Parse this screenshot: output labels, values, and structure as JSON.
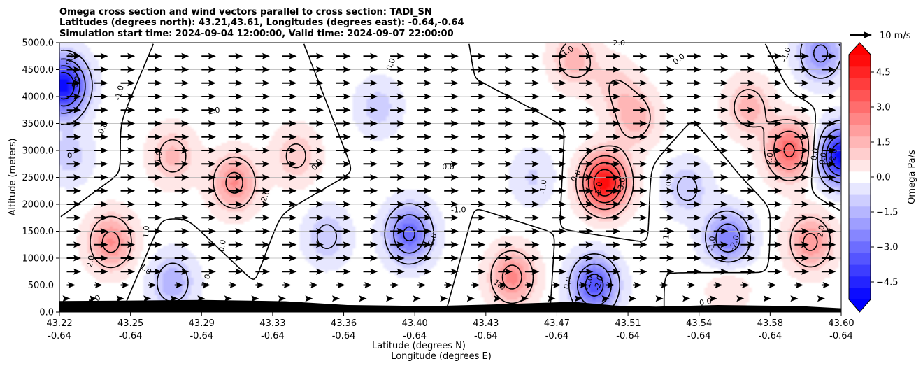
{
  "chart_data": {
    "type": "heatmap",
    "title_lines": [
      "Omega cross section and wind vectors parallel to cross section: TADI_SN",
      "Latitudes (degrees north): 43.21,43.61, Longitudes (degrees east): -0.64,-0.64",
      "Simulation start time: 2024-09-04 12:00:00, Valid time: 2024-09-07 22:00:00"
    ],
    "ylabel": "Altitude (meters)",
    "xlabel_lines": [
      "Latitude (degrees N)",
      "Longitude (degrees E)"
    ],
    "x_range": [
      43.22,
      43.6
    ],
    "ylim": [
      0,
      5000
    ],
    "x_ticks": [
      {
        "lat": "43.22",
        "lon": "-0.64"
      },
      {
        "lat": "43.25",
        "lon": "-0.64"
      },
      {
        "lat": "43.29",
        "lon": "-0.64"
      },
      {
        "lat": "43.33",
        "lon": "-0.64"
      },
      {
        "lat": "43.36",
        "lon": "-0.64"
      },
      {
        "lat": "43.40",
        "lon": "-0.64"
      },
      {
        "lat": "43.43",
        "lon": "-0.64"
      },
      {
        "lat": "43.47",
        "lon": "-0.64"
      },
      {
        "lat": "43.51",
        "lon": "-0.64"
      },
      {
        "lat": "43.54",
        "lon": "-0.64"
      },
      {
        "lat": "43.58",
        "lon": "-0.64"
      },
      {
        "lat": "43.60",
        "lon": "-0.64"
      }
    ],
    "y_ticks": [
      "0.0",
      "500.0",
      "1000.0",
      "1500.0",
      "2000.0",
      "2500.0",
      "3000.0",
      "3500.0",
      "4000.0",
      "4500.0",
      "5000.0"
    ],
    "y_tick_values": [
      0,
      500,
      1000,
      1500,
      2000,
      2500,
      3000,
      3500,
      4000,
      4500,
      5000
    ],
    "grid": "horizontal",
    "colorbar": {
      "label": "Omega Pa/s",
      "min": -5.25,
      "max": 5.25,
      "step": 0.5,
      "ticks": [
        "4.5",
        "3.0",
        "1.5",
        "0.0",
        "−1.5",
        "−3.0",
        "−4.5"
      ],
      "tick_values": [
        4.5,
        3.0,
        1.5,
        0.0,
        -1.5,
        -3.0,
        -4.5
      ],
      "extend": "both",
      "colormap": "bwr"
    },
    "vector_key": {
      "label": "10 m/s",
      "speed": 10
    },
    "wind": {
      "predominant_direction": "along cross section (toward north)",
      "typical_speed_ms": 8
    },
    "omega_centers": [
      {
        "lat": 43.222,
        "alt": 4200,
        "value": -5.0
      },
      {
        "lat": 43.225,
        "alt": 2900,
        "value": -1.0
      },
      {
        "lat": 43.245,
        "alt": 1300,
        "value": 2.3
      },
      {
        "lat": 43.275,
        "alt": 2900,
        "value": 1.4
      },
      {
        "lat": 43.305,
        "alt": 2400,
        "value": 2.3
      },
      {
        "lat": 43.335,
        "alt": 2900,
        "value": 1.2
      },
      {
        "lat": 43.275,
        "alt": 550,
        "value": -1.6
      },
      {
        "lat": 43.39,
        "alt": 1450,
        "value": -3.2
      },
      {
        "lat": 43.35,
        "alt": 1400,
        "value": -1.2
      },
      {
        "lat": 43.375,
        "alt": 3800,
        "value": -1.0
      },
      {
        "lat": 43.44,
        "alt": 650,
        "value": 2.4
      },
      {
        "lat": 43.485,
        "alt": 2400,
        "value": 5.0
      },
      {
        "lat": 43.47,
        "alt": 4700,
        "value": 1.5
      },
      {
        "lat": 43.45,
        "alt": 2500,
        "value": -0.8
      },
      {
        "lat": 43.48,
        "alt": 500,
        "value": -3.5
      },
      {
        "lat": 43.5,
        "alt": 3600,
        "value": 1.5
      },
      {
        "lat": 43.525,
        "alt": 2300,
        "value": -1.2
      },
      {
        "lat": 43.545,
        "alt": 1350,
        "value": -2.7
      },
      {
        "lat": 43.555,
        "alt": 3800,
        "value": 1.5
      },
      {
        "lat": 43.575,
        "alt": 3000,
        "value": 3.2
      },
      {
        "lat": 43.585,
        "alt": 1300,
        "value": 2.2
      },
      {
        "lat": 43.6,
        "alt": 2900,
        "value": -5.0
      },
      {
        "lat": 43.59,
        "alt": 4800,
        "value": -2.2
      },
      {
        "lat": 43.49,
        "alt": 4200,
        "value": 0.9
      },
      {
        "lat": 43.545,
        "alt": 500,
        "value": 0.8
      }
    ],
    "contour_labels": [
      "-1.0",
      "0.0",
      "1.0",
      "2.0",
      "-2.0",
      "3.0",
      "-3.0"
    ],
    "contour_labels_shown": [
      {
        "text": "-1.0",
        "lat": 43.249,
        "alt": 4070,
        "rot": -75
      },
      {
        "text": "0.0",
        "lat": 43.241,
        "alt": 3420,
        "rot": -65
      },
      {
        "text": "0.0",
        "lat": 43.225,
        "alt": 4700,
        "rot": -70
      },
      {
        "text": "0.0",
        "lat": 43.228,
        "alt": 4270,
        "rot": -70
      },
      {
        "text": "1.0",
        "lat": 43.295,
        "alt": 3740,
        "rot": -10
      },
      {
        "text": "2.0",
        "lat": 43.32,
        "alt": 2160,
        "rot": -70
      },
      {
        "text": "1.0",
        "lat": 43.268,
        "alt": 2880,
        "rot": -80
      },
      {
        "text": "1.0",
        "lat": 43.262,
        "alt": 1490,
        "rot": -85
      },
      {
        "text": "2.0",
        "lat": 43.235,
        "alt": 940,
        "rot": -80
      },
      {
        "text": "0.0",
        "lat": 43.237,
        "alt": 230,
        "rot": -30
      },
      {
        "text": "1.0",
        "lat": 43.262,
        "alt": 800,
        "rot": 40
      },
      {
        "text": "-1.0",
        "lat": 43.291,
        "alt": 570,
        "rot": -70
      },
      {
        "text": "0.0",
        "lat": 43.299,
        "alt": 1230,
        "rot": -80
      },
      {
        "text": "0.0",
        "lat": 43.345,
        "alt": 2740,
        "rot": -50
      },
      {
        "text": "0.0",
        "lat": 43.381,
        "alt": 4600,
        "rot": -70
      },
      {
        "text": "0.0",
        "lat": 43.409,
        "alt": 2700,
        "rot": 0
      },
      {
        "text": "-1.0",
        "lat": 43.414,
        "alt": 1900,
        "rot": 0
      },
      {
        "text": "-2.0",
        "lat": 43.401,
        "alt": 1330,
        "rot": -70
      },
      {
        "text": "-1.0",
        "lat": 43.455,
        "alt": 2320,
        "rot": -85
      },
      {
        "text": "1.0",
        "lat": 43.434,
        "alt": 510,
        "rot": 35
      },
      {
        "text": "0.0",
        "lat": 43.471,
        "alt": 2530,
        "rot": -60
      },
      {
        "text": "-2.0",
        "lat": 43.482,
        "alt": 2280,
        "rot": -80
      },
      {
        "text": "-3.0",
        "lat": 43.493,
        "alt": 2360,
        "rot": -80
      },
      {
        "text": "0.0",
        "lat": 43.467,
        "alt": 540,
        "rot": -75
      },
      {
        "text": "-1.0",
        "lat": 43.477,
        "alt": 540,
        "rot": -75
      },
      {
        "text": "-2.0",
        "lat": 43.482,
        "alt": 540,
        "rot": -75
      },
      {
        "text": "1.0",
        "lat": 43.467,
        "alt": 4850,
        "rot": -30
      },
      {
        "text": "2.0",
        "lat": 43.492,
        "alt": 5000,
        "rot": 0
      },
      {
        "text": "0.0",
        "lat": 43.521,
        "alt": 4700,
        "rot": -40
      },
      {
        "text": "0.0",
        "lat": 43.516,
        "alt": 2450,
        "rot": -90
      },
      {
        "text": "1.0",
        "lat": 43.515,
        "alt": 1460,
        "rot": -85
      },
      {
        "text": "-1.0",
        "lat": 43.537,
        "alt": 1270,
        "rot": -85
      },
      {
        "text": "-2.0",
        "lat": 43.548,
        "alt": 1290,
        "rot": -70
      },
      {
        "text": "0.0",
        "lat": 43.534,
        "alt": 190,
        "rot": -10
      },
      {
        "text": "-1.0",
        "lat": 43.573,
        "alt": 4780,
        "rot": -70
      },
      {
        "text": "2.0",
        "lat": 43.565,
        "alt": 2850,
        "rot": -80
      },
      {
        "text": "0.0",
        "lat": 43.587,
        "alt": 2930,
        "rot": -80
      },
      {
        "text": "0.0",
        "lat": 43.591,
        "alt": 2850,
        "rot": -80
      },
      {
        "text": "-2.0",
        "lat": 43.596,
        "alt": 2900,
        "rot": -80
      },
      {
        "text": "2.0",
        "lat": 43.59,
        "alt": 1500,
        "rot": -80
      }
    ]
  }
}
